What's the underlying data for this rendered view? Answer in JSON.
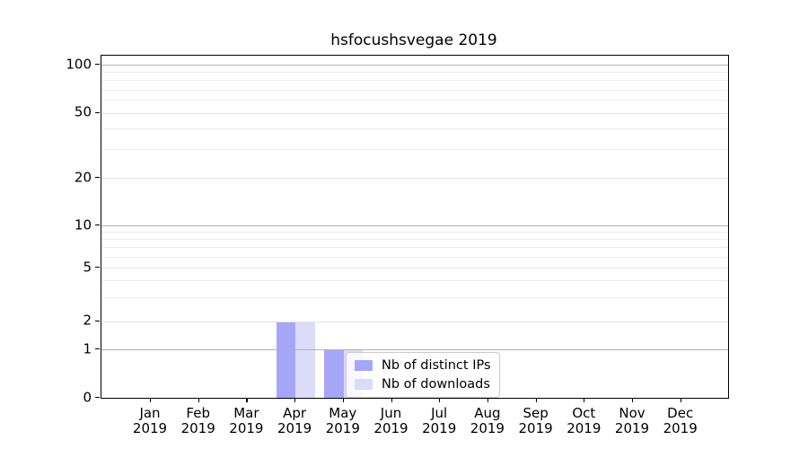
{
  "chart_data": {
    "type": "bar",
    "title": "hsfocushsvegae 2019",
    "categories": [
      "Jan",
      "Feb",
      "Mar",
      "Apr",
      "May",
      "Jun",
      "Jul",
      "Aug",
      "Sep",
      "Oct",
      "Nov",
      "Dec"
    ],
    "x_year_label": "2019",
    "series": [
      {
        "name": "Nb of distinct IPs",
        "color": "#a6a6f8",
        "values": [
          0,
          0,
          0,
          2,
          1,
          0,
          0,
          0,
          0,
          0,
          0,
          0
        ]
      },
      {
        "name": "Nb of downloads",
        "color": "#dbdbfa",
        "values": [
          0,
          0,
          0,
          2,
          1,
          0,
          0,
          0,
          0,
          0,
          0,
          0
        ]
      }
    ],
    "xlabel": "",
    "ylabel": "",
    "y_scale": "symlog-like",
    "y_ticks": [
      0,
      1,
      2,
      5,
      10,
      20,
      50,
      100
    ],
    "y_major_grid_values": [
      1,
      10,
      100
    ],
    "y_minor_grid_values": [
      3,
      4,
      6,
      7,
      8,
      9,
      30,
      40,
      60,
      70,
      80,
      90
    ],
    "ylim": [
      0,
      115
    ],
    "grid": "horizontal",
    "legend_position": "lower-center",
    "colors": {
      "major_grid": "#b0b0b0",
      "mid_grid": "#e4e4e4",
      "minor_grid": "#ececec",
      "spine": "#000000",
      "text": "#000000",
      "legend_border": "#cbcbcb"
    }
  }
}
